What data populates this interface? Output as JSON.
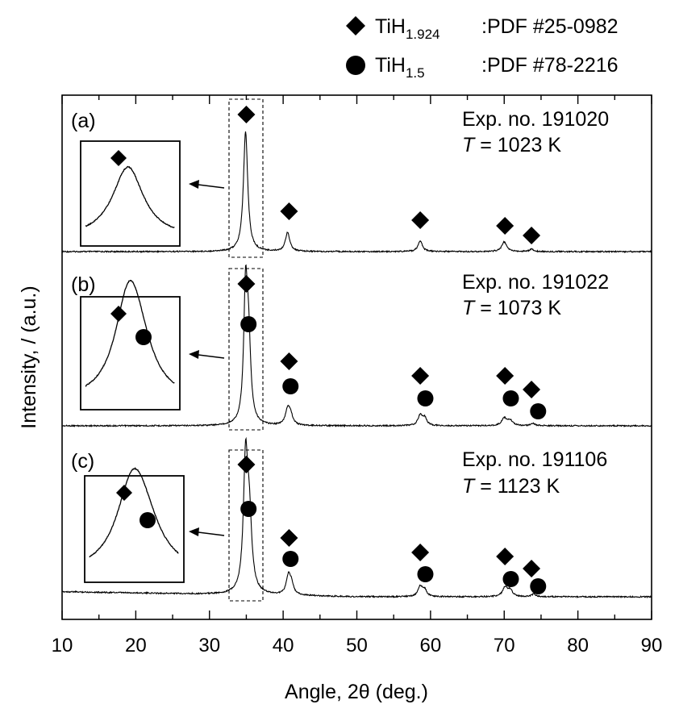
{
  "chart_data": {
    "type": "line",
    "title": "",
    "xlabel": "Angle, 2θ (deg.)",
    "ylabel": "Intensity, / (a.u.)",
    "xlim": [
      10,
      90
    ],
    "xticks": [
      10,
      20,
      30,
      40,
      50,
      60,
      70,
      80,
      90
    ],
    "legend": [
      {
        "name": "TiH",
        "sub": "1.924",
        "ref": ":PDF #25-0982",
        "marker": "diamond"
      },
      {
        "name": "TiH",
        "sub": "1.5",
        "ref": ":PDF #78-2216",
        "marker": "circle"
      }
    ],
    "panels": [
      {
        "label": "(a)",
        "exp": "Exp. no. 191020",
        "temp_symbol": "T",
        "temp": "= 1023 K",
        "peaks": [
          {
            "angle": 34.9,
            "height": 1.0,
            "width": 0.35
          },
          {
            "angle": 40.6,
            "height": 0.16,
            "width": 0.35
          },
          {
            "angle": 58.6,
            "height": 0.09,
            "width": 0.35
          },
          {
            "angle": 70.0,
            "height": 0.08,
            "width": 0.4
          },
          {
            "angle": 73.7,
            "height": 0.02,
            "width": 0.35
          }
        ],
        "diamond_angles": [
          35.0,
          40.8,
          58.6,
          70.1,
          73.7
        ],
        "circle_angles": []
      },
      {
        "label": "(b)",
        "exp": "Exp. no. 191022",
        "temp_symbol": "T",
        "temp": "= 1073 K",
        "peaks": [
          {
            "angle": 34.9,
            "height": 1.0,
            "width": 0.3
          },
          {
            "angle": 35.3,
            "height": 0.62,
            "width": 0.35
          },
          {
            "angle": 40.6,
            "height": 0.12,
            "width": 0.35
          },
          {
            "angle": 41.0,
            "height": 0.08,
            "width": 0.35
          },
          {
            "angle": 58.6,
            "height": 0.08,
            "width": 0.35
          },
          {
            "angle": 59.2,
            "height": 0.06,
            "width": 0.35
          },
          {
            "angle": 70.0,
            "height": 0.06,
            "width": 0.4
          },
          {
            "angle": 70.8,
            "height": 0.04,
            "width": 0.4
          },
          {
            "angle": 73.9,
            "height": 0.02,
            "width": 0.35
          }
        ],
        "diamond_angles": [
          35.0,
          40.8,
          58.6,
          70.1,
          73.7
        ],
        "circle_angles": [
          35.3,
          41.0,
          59.3,
          70.9,
          74.6
        ]
      },
      {
        "label": "(c)",
        "exp": "Exp. no. 191106",
        "temp_symbol": "T",
        "temp": "= 1123 K",
        "peaks": [
          {
            "angle": 34.9,
            "height": 1.0,
            "width": 0.35
          },
          {
            "angle": 35.4,
            "height": 0.55,
            "width": 0.4
          },
          {
            "angle": 40.7,
            "height": 0.14,
            "width": 0.35
          },
          {
            "angle": 41.1,
            "height": 0.08,
            "width": 0.35
          },
          {
            "angle": 58.6,
            "height": 0.08,
            "width": 0.35
          },
          {
            "angle": 59.2,
            "height": 0.05,
            "width": 0.35
          },
          {
            "angle": 70.1,
            "height": 0.07,
            "width": 0.4
          },
          {
            "angle": 70.8,
            "height": 0.05,
            "width": 0.4
          },
          {
            "angle": 74.0,
            "height": 0.02,
            "width": 0.35
          }
        ],
        "diamond_angles": [
          35.0,
          40.8,
          58.6,
          70.1,
          73.7
        ],
        "circle_angles": [
          35.3,
          41.0,
          59.3,
          70.9,
          74.6
        ]
      }
    ],
    "inset": {
      "zoom_range": [
        33,
        37
      ],
      "note": "insets show enlarged view of the main peak region marked by dashed box"
    }
  }
}
